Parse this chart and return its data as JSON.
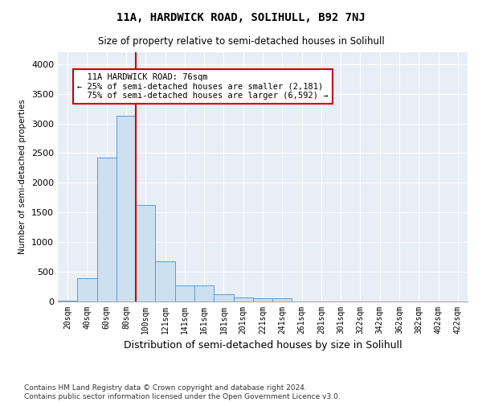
{
  "title": "11A, HARDWICK ROAD, SOLIHULL, B92 7NJ",
  "subtitle": "Size of property relative to semi-detached houses in Solihull",
  "xlabel": "Distribution of semi-detached houses by size in Solihull",
  "ylabel": "Number of semi-detached properties",
  "footnote": "Contains HM Land Registry data © Crown copyright and database right 2024.\nContains public sector information licensed under the Open Government Licence v3.0.",
  "bar_color": "#cde0f0",
  "bar_edge_color": "#5b9bd5",
  "background_color": "#e8eef5",
  "grid_color": "#ffffff",
  "bins": [
    "20sqm",
    "40sqm",
    "60sqm",
    "80sqm",
    "100sqm",
    "121sqm",
    "141sqm",
    "161sqm",
    "181sqm",
    "201sqm",
    "221sqm",
    "241sqm",
    "261sqm",
    "281sqm",
    "301sqm",
    "322sqm",
    "342sqm",
    "362sqm",
    "382sqm",
    "402sqm",
    "422sqm"
  ],
  "values": [
    10,
    390,
    2430,
    3130,
    1620,
    680,
    270,
    270,
    120,
    70,
    60,
    60,
    0,
    0,
    0,
    0,
    0,
    0,
    0,
    0,
    0
  ],
  "property_label": "11A HARDWICK ROAD: 76sqm",
  "smaller_pct": 25,
  "smaller_count": 2181,
  "larger_pct": 75,
  "larger_count": 6592,
  "annotation_box_color": "#ffffff",
  "annotation_box_edge": "#cc0000",
  "vline_color": "#cc0000",
  "vline_x_index": 3.5,
  "ylim": [
    0,
    4200
  ],
  "yticks": [
    0,
    500,
    1000,
    1500,
    2000,
    2500,
    3000,
    3500,
    4000
  ],
  "fig_bg": "#ffffff"
}
